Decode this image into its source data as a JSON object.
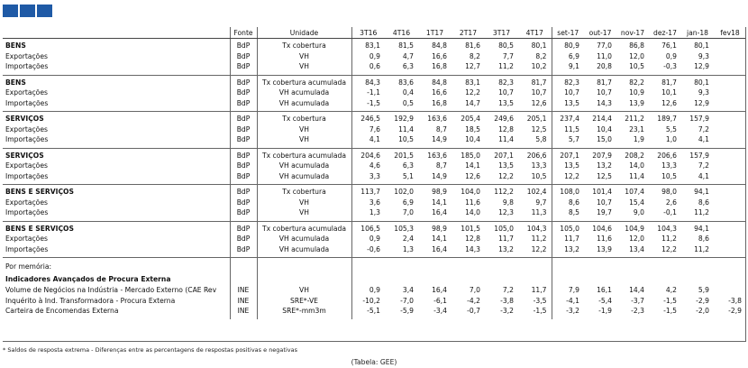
{
  "header": {
    "columns": [
      "Fonte",
      "Unidade",
      "3T16",
      "4T16",
      "1T17",
      "2T17",
      "3T17",
      "4T17",
      "set-17",
      "out-17",
      "nov-17",
      "dez-17",
      "jan-18",
      "fev18"
    ]
  },
  "blocks": [
    {
      "rows": [
        [
          "BENS",
          "BdP",
          "Tx cobertura",
          "83,1",
          "81,5",
          "84,8",
          "81,6",
          "80,5",
          "80,1",
          "80,9",
          "77,0",
          "86,8",
          "76,1",
          "80,1"
        ],
        [
          "Exportações",
          "BdP",
          "VH",
          "0,9",
          "4,7",
          "16,6",
          "8,2",
          "7,7",
          "8,2",
          "6,9",
          "11,0",
          "12,0",
          "0,9",
          "9,3"
        ],
        [
          "Importações",
          "BdP",
          "VH",
          "0,6",
          "6,3",
          "16,8",
          "12,7",
          "11,2",
          "10,2",
          "9,1",
          "20,8",
          "10,5",
          "-0,3",
          "12,9"
        ]
      ]
    },
    {
      "rows": [
        [
          "BENS",
          "BdP",
          "Tx cobertura acumulada",
          "84,3",
          "83,6",
          "84,8",
          "83,1",
          "82,3",
          "81,7",
          "82,3",
          "81,7",
          "82,2",
          "81,7",
          "80,1"
        ],
        [
          "Exportações",
          "BdP",
          "VH acumulada",
          "-1,1",
          "0,4",
          "16,6",
          "12,2",
          "10,7",
          "10,7",
          "10,7",
          "10,7",
          "10,9",
          "10,1",
          "9,3"
        ],
        [
          "Importações",
          "BdP",
          "VH acumulada",
          "-1,5",
          "0,5",
          "16,8",
          "14,7",
          "13,5",
          "12,6",
          "13,5",
          "14,3",
          "13,9",
          "12,6",
          "12,9"
        ]
      ]
    },
    {
      "rows": [
        [
          "SERVIÇOS",
          "BdP",
          "Tx cobertura",
          "246,5",
          "192,9",
          "163,6",
          "205,4",
          "249,6",
          "205,1",
          "237,4",
          "214,4",
          "211,2",
          "189,7",
          "157,9"
        ],
        [
          "Exportações",
          "BdP",
          "VH",
          "7,6",
          "11,4",
          "8,7",
          "18,5",
          "12,8",
          "12,5",
          "11,5",
          "10,4",
          "23,1",
          "5,5",
          "7,2"
        ],
        [
          "Importações",
          "BdP",
          "VH",
          "4,1",
          "10,5",
          "14,9",
          "10,4",
          "11,4",
          "5,8",
          "5,7",
          "15,0",
          "1,9",
          "1,0",
          "4,1"
        ]
      ]
    },
    {
      "rows": [
        [
          "SERVIÇOS",
          "BdP",
          "Tx cobertura acumulada",
          "204,6",
          "201,5",
          "163,6",
          "185,0",
          "207,1",
          "206,6",
          "207,1",
          "207,9",
          "208,2",
          "206,6",
          "157,9"
        ],
        [
          "Exportações",
          "BdP",
          "VH acumulada",
          "4,6",
          "6,3",
          "8,7",
          "14,1",
          "13,5",
          "13,3",
          "13,5",
          "13,2",
          "14,0",
          "13,3",
          "7,2"
        ],
        [
          "Importações",
          "BdP",
          "VH acumulada",
          "3,3",
          "5,1",
          "14,9",
          "12,6",
          "12,2",
          "10,5",
          "12,2",
          "12,5",
          "11,4",
          "10,5",
          "4,1"
        ]
      ]
    },
    {
      "rows": [
        [
          "BENS E SERVIÇOS",
          "BdP",
          "Tx cobertura",
          "113,7",
          "102,0",
          "98,9",
          "104,0",
          "112,2",
          "102,4",
          "108,0",
          "101,4",
          "107,4",
          "98,0",
          "94,1"
        ],
        [
          "Exportações",
          "BdP",
          "VH",
          "3,6",
          "6,9",
          "14,1",
          "11,6",
          "9,8",
          "9,7",
          "8,6",
          "10,7",
          "15,4",
          "2,6",
          "8,6"
        ],
        [
          "Importações",
          "BdP",
          "VH",
          "1,3",
          "7,0",
          "16,4",
          "14,0",
          "12,3",
          "11,3",
          "8,5",
          "19,7",
          "9,0",
          "-0,1",
          "11,2"
        ]
      ]
    },
    {
      "rows": [
        [
          "BENS E SERVIÇOS",
          "BdP",
          "Tx cobertura acumulada",
          "106,5",
          "105,3",
          "98,9",
          "101,5",
          "105,0",
          "104,3",
          "105,0",
          "104,6",
          "104,9",
          "104,3",
          "94,1"
        ],
        [
          "Exportações",
          "BdP",
          "VH acumulada",
          "0,9",
          "2,4",
          "14,1",
          "12,8",
          "11,7",
          "11,2",
          "11,7",
          "11,6",
          "12,0",
          "11,2",
          "8,6"
        ],
        [
          "Importações",
          "BdP",
          "VH acumulada",
          "-0,6",
          "1,3",
          "16,4",
          "14,3",
          "13,2",
          "12,2",
          "13,2",
          "13,9",
          "13,4",
          "12,2",
          "11,2"
        ]
      ]
    },
    {
      "rows": [
        [
          "Por memória:"
        ],
        [
          "Indicadores Avançados de Procura Externa"
        ],
        [
          "Volume de Negócios na Indústria - Mercado Externo (CAE Rev",
          "INE",
          "VH",
          "0,9",
          "3,4",
          "16,4",
          "7,0",
          "7,2",
          "11,7",
          "7,9",
          "16,1",
          "14,4",
          "4,2",
          "5,9"
        ],
        [
          "Inquérito à Ind. Transformadora - Procura Externa",
          "INE",
          "SRE*-VE",
          "-10,2",
          "-7,0",
          "-6,1",
          "-4,2",
          "-3,8",
          "-3,5",
          "-4,1",
          "-5,4",
          "-3,7",
          "-1,5",
          "-2,9",
          "-3,8"
        ],
        [
          "Carteira de Encomendas Externa",
          "INE",
          "SRE*-mm3m",
          "-5,1",
          "-5,9",
          "-3,4",
          "-0,7",
          "-3,2",
          "-1,5",
          "-3,2",
          "-1,9",
          "-2,3",
          "-1,5",
          "-2,0",
          "-2,9"
        ]
      ]
    }
  ],
  "footnote": "* Saldos de resposta extrema - Diferenças entre as percentagens de respostas positivas e negativas",
  "source": "(Tabela: GEE)"
}
